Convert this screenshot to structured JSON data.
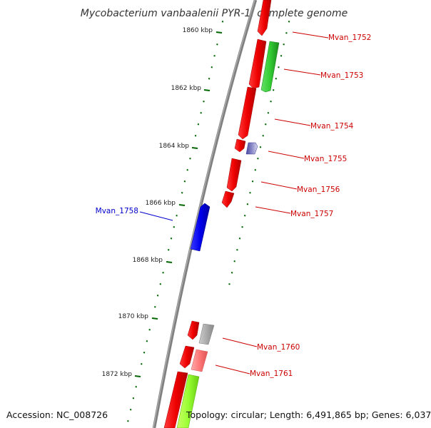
{
  "title": "Mycobacterium vanbaalenii PYR-1, complete genome",
  "kbp_labels": [
    "1860 kbp",
    "1862 kbp",
    "1864 kbp",
    "1866 kbp",
    "1868 kbp",
    "1870 kbp",
    "1872 kbp"
  ],
  "gene_labels": {
    "mvan_1752": "Mvan_1752",
    "mvan_1753": "Mvan_1753",
    "mvan_1754": "Mvan_1754",
    "mvan_1755": "Mvan_1755",
    "mvan_1756": "Mvan_1756",
    "mvan_1757": "Mvan_1757",
    "mvan_1758": "Mvan_1758",
    "mvan_1760": "Mvan_1760",
    "mvan_1761": "Mvan_1761"
  },
  "colors": {
    "forward_cds": "#ff0000",
    "reverse_cds": "#0000ff",
    "green_gene": "#33cc33",
    "lime_gene": "#99ff33",
    "navy_gene": "#333399",
    "grey_gene": "#aaaaaa",
    "pink_gene": "#ff8080",
    "tick_green": "#006600",
    "label_red": "#cc0000",
    "label_blue": "#0000cc"
  },
  "footer": {
    "accession": "Accession: NC_008726",
    "topology": "Topology: circular; Length: 6,491,865 bp; Genes: 6,037"
  }
}
